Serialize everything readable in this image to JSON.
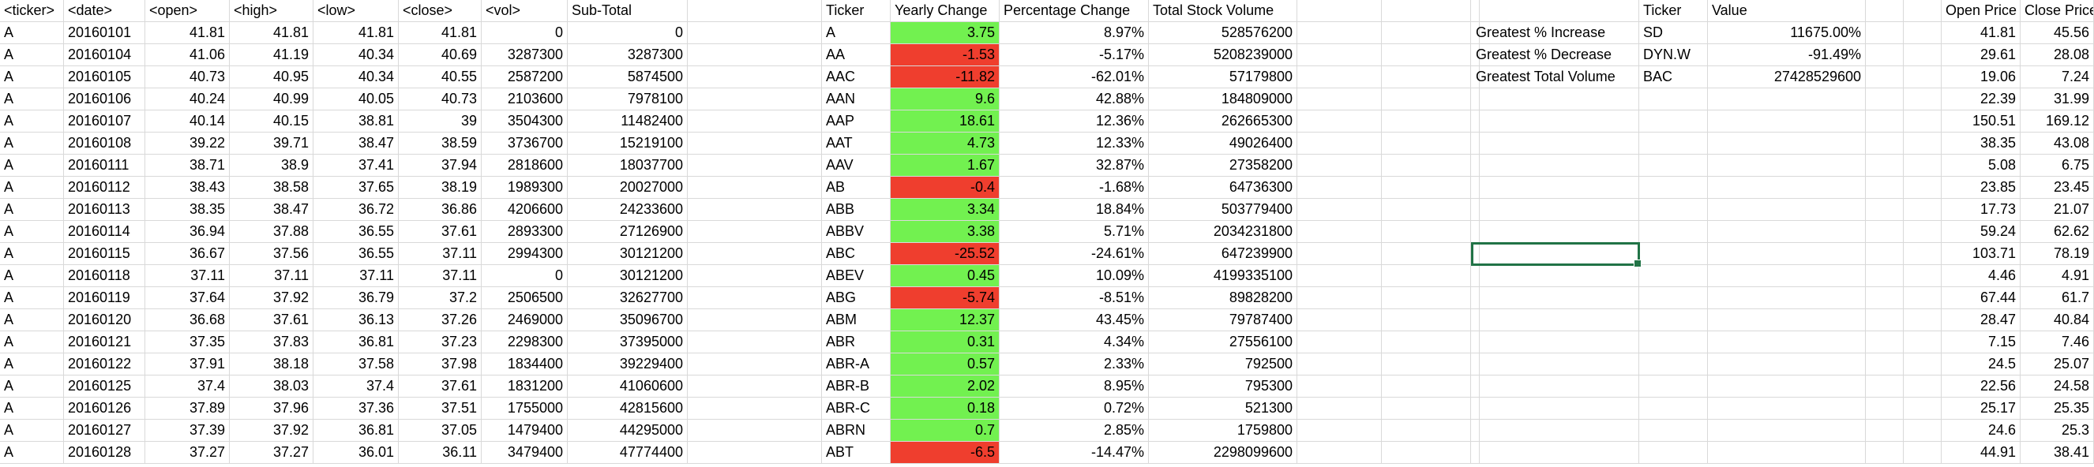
{
  "headers": [
    "<ticker>",
    "<date>",
    "<open>",
    "<high>",
    "<low>",
    "<close>",
    "<vol>",
    "Sub-Total",
    "",
    "Ticker",
    "Yearly Change",
    "Percentage Change",
    "Total Stock Volume",
    "",
    "",
    "",
    "",
    "Ticker",
    "Value",
    "",
    "",
    "Open Price",
    "Close Price"
  ],
  "raw_rows": [
    [
      "A",
      "20160101",
      "41.81",
      "41.81",
      "41.81",
      "41.81",
      "0",
      "0"
    ],
    [
      "A",
      "20160104",
      "41.06",
      "41.19",
      "40.34",
      "40.69",
      "3287300",
      "3287300"
    ],
    [
      "A",
      "20160105",
      "40.73",
      "40.95",
      "40.34",
      "40.55",
      "2587200",
      "5874500"
    ],
    [
      "A",
      "20160106",
      "40.24",
      "40.99",
      "40.05",
      "40.73",
      "2103600",
      "7978100"
    ],
    [
      "A",
      "20160107",
      "40.14",
      "40.15",
      "38.81",
      "39",
      "3504300",
      "11482400"
    ],
    [
      "A",
      "20160108",
      "39.22",
      "39.71",
      "38.47",
      "38.59",
      "3736700",
      "15219100"
    ],
    [
      "A",
      "20160111",
      "38.71",
      "38.9",
      "37.41",
      "37.94",
      "2818600",
      "18037700"
    ],
    [
      "A",
      "20160112",
      "38.43",
      "38.58",
      "37.65",
      "38.19",
      "1989300",
      "20027000"
    ],
    [
      "A",
      "20160113",
      "38.35",
      "38.47",
      "36.72",
      "36.86",
      "4206600",
      "24233600"
    ],
    [
      "A",
      "20160114",
      "36.94",
      "37.88",
      "36.55",
      "37.61",
      "2893300",
      "27126900"
    ],
    [
      "A",
      "20160115",
      "36.67",
      "37.56",
      "36.55",
      "37.11",
      "2994300",
      "30121200"
    ],
    [
      "A",
      "20160118",
      "37.11",
      "37.11",
      "37.11",
      "37.11",
      "0",
      "30121200"
    ],
    [
      "A",
      "20160119",
      "37.64",
      "37.92",
      "36.79",
      "37.2",
      "2506500",
      "32627700"
    ],
    [
      "A",
      "20160120",
      "36.68",
      "37.61",
      "36.13",
      "37.26",
      "2469000",
      "35096700"
    ],
    [
      "A",
      "20160121",
      "37.35",
      "37.83",
      "36.81",
      "37.23",
      "2298300",
      "37395000"
    ],
    [
      "A",
      "20160122",
      "37.91",
      "38.18",
      "37.58",
      "37.98",
      "1834400",
      "39229400"
    ],
    [
      "A",
      "20160125",
      "37.4",
      "38.03",
      "37.4",
      "37.61",
      "1831200",
      "41060600"
    ],
    [
      "A",
      "20160126",
      "37.89",
      "37.96",
      "37.36",
      "37.51",
      "1755000",
      "42815600"
    ],
    [
      "A",
      "20160127",
      "37.39",
      "37.92",
      "36.81",
      "37.05",
      "1479400",
      "44295000"
    ],
    [
      "A",
      "20160128",
      "37.27",
      "37.27",
      "36.01",
      "36.11",
      "3479400",
      "47774400"
    ]
  ],
  "summary_rows": [
    {
      "ticker": "A",
      "change": "3.75",
      "pct": "8.97%",
      "volume": "528576200",
      "status": "positive"
    },
    {
      "ticker": "AA",
      "change": "-1.53",
      "pct": "-5.17%",
      "volume": "5208239000",
      "status": "negative"
    },
    {
      "ticker": "AAC",
      "change": "-11.82",
      "pct": "-62.01%",
      "volume": "57179800",
      "status": "negative"
    },
    {
      "ticker": "AAN",
      "change": "9.6",
      "pct": "42.88%",
      "volume": "184809000",
      "status": "positive"
    },
    {
      "ticker": "AAP",
      "change": "18.61",
      "pct": "12.36%",
      "volume": "262665300",
      "status": "positive"
    },
    {
      "ticker": "AAT",
      "change": "4.73",
      "pct": "12.33%",
      "volume": "49026400",
      "status": "positive"
    },
    {
      "ticker": "AAV",
      "change": "1.67",
      "pct": "32.87%",
      "volume": "27358200",
      "status": "positive"
    },
    {
      "ticker": "AB",
      "change": "-0.4",
      "pct": "-1.68%",
      "volume": "64736300",
      "status": "negative"
    },
    {
      "ticker": "ABB",
      "change": "3.34",
      "pct": "18.84%",
      "volume": "503779400",
      "status": "positive"
    },
    {
      "ticker": "ABBV",
      "change": "3.38",
      "pct": "5.71%",
      "volume": "2034231800",
      "status": "positive"
    },
    {
      "ticker": "ABC",
      "change": "-25.52",
      "pct": "-24.61%",
      "volume": "647239900",
      "status": "negative"
    },
    {
      "ticker": "ABEV",
      "change": "0.45",
      "pct": "10.09%",
      "volume": "4199335100",
      "status": "positive"
    },
    {
      "ticker": "ABG",
      "change": "-5.74",
      "pct": "-8.51%",
      "volume": "89828200",
      "status": "negative"
    },
    {
      "ticker": "ABM",
      "change": "12.37",
      "pct": "43.45%",
      "volume": "79787400",
      "status": "positive"
    },
    {
      "ticker": "ABR",
      "change": "0.31",
      "pct": "4.34%",
      "volume": "27556100",
      "status": "positive"
    },
    {
      "ticker": "ABR-A",
      "change": "0.57",
      "pct": "2.33%",
      "volume": "792500",
      "status": "positive"
    },
    {
      "ticker": "ABR-B",
      "change": "2.02",
      "pct": "8.95%",
      "volume": "795300",
      "status": "positive"
    },
    {
      "ticker": "ABR-C",
      "change": "0.18",
      "pct": "0.72%",
      "volume": "521300",
      "status": "positive"
    },
    {
      "ticker": "ABRN",
      "change": "0.7",
      "pct": "2.85%",
      "volume": "1759800",
      "status": "positive"
    },
    {
      "ticker": "ABT",
      "change": "-6.5",
      "pct": "-14.47%",
      "volume": "2298099600",
      "status": "negative"
    }
  ],
  "greatest": [
    {
      "label": "Greatest % Increase",
      "ticker": "SD",
      "value": "11675.00%"
    },
    {
      "label": "Greatest % Decrease",
      "ticker": "DYN.W",
      "value": "-91.49%"
    },
    {
      "label": "Greatest Total Volume",
      "ticker": "BAC",
      "value": "27428529600"
    }
  ],
  "prices": [
    [
      "41.81",
      "45.56"
    ],
    [
      "29.61",
      "28.08"
    ],
    [
      "19.06",
      "7.24"
    ],
    [
      "22.39",
      "31.99"
    ],
    [
      "150.51",
      "169.12"
    ],
    [
      "38.35",
      "43.08"
    ],
    [
      "5.08",
      "6.75"
    ],
    [
      "23.85",
      "23.45"
    ],
    [
      "17.73",
      "21.07"
    ],
    [
      "59.24",
      "62.62"
    ],
    [
      "103.71",
      "78.19"
    ],
    [
      "4.46",
      "4.91"
    ],
    [
      "67.44",
      "61.7"
    ],
    [
      "28.47",
      "40.84"
    ],
    [
      "7.15",
      "7.46"
    ],
    [
      "24.5",
      "25.07"
    ],
    [
      "22.56",
      "24.58"
    ],
    [
      "25.17",
      "25.35"
    ],
    [
      "24.6",
      "25.3"
    ],
    [
      "44.91",
      "38.41"
    ]
  ],
  "colors": {
    "positive": "#72f150",
    "negative": "#ef3e2e",
    "selection": "#217346",
    "gridline": "#d9d9d9"
  }
}
